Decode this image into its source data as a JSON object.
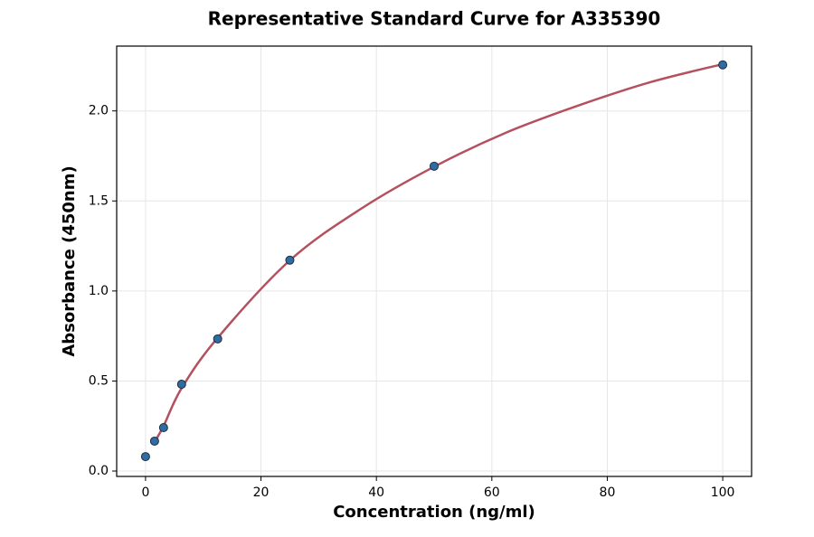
{
  "chart_data": {
    "type": "scatter",
    "title": "Representative Standard Curve for A335390",
    "x_label": "Concentration (ng/ml)",
    "y_label": "Absorbance (450nm)",
    "xlim": [
      -5,
      105
    ],
    "ylim": [
      -0.03,
      2.36
    ],
    "xticks": [
      0,
      20,
      40,
      60,
      80,
      100
    ],
    "yticks": [
      {
        "value": 0,
        "label": "0.0"
      },
      {
        "value": 0.5,
        "label": "0.5"
      },
      {
        "value": 1,
        "label": "1.0"
      },
      {
        "value": 1.5,
        "label": "1.5"
      },
      {
        "value": 2,
        "label": "2.0"
      }
    ],
    "grid": true,
    "series": [
      {
        "type": "scatter",
        "color": "#2e6da4",
        "edge_color": "#1f2d3d",
        "x": [
          0,
          1.5625,
          3.125,
          6.25,
          12.5,
          25,
          50,
          100
        ],
        "values": [
          0.08,
          0.166,
          0.241,
          0.482,
          0.734,
          1.171,
          1.693,
          2.256
        ]
      },
      {
        "type": "line",
        "color": "#b5505f",
        "x": [
          1.5625,
          3.125,
          6.25,
          12.5,
          25,
          37.5,
          50,
          62.5,
          75,
          87.5,
          100
        ],
        "values": [
          0.16,
          0.25,
          0.46,
          0.74,
          1.17,
          1.46,
          1.69,
          1.88,
          2.03,
          2.16,
          2.26
        ]
      }
    ]
  }
}
